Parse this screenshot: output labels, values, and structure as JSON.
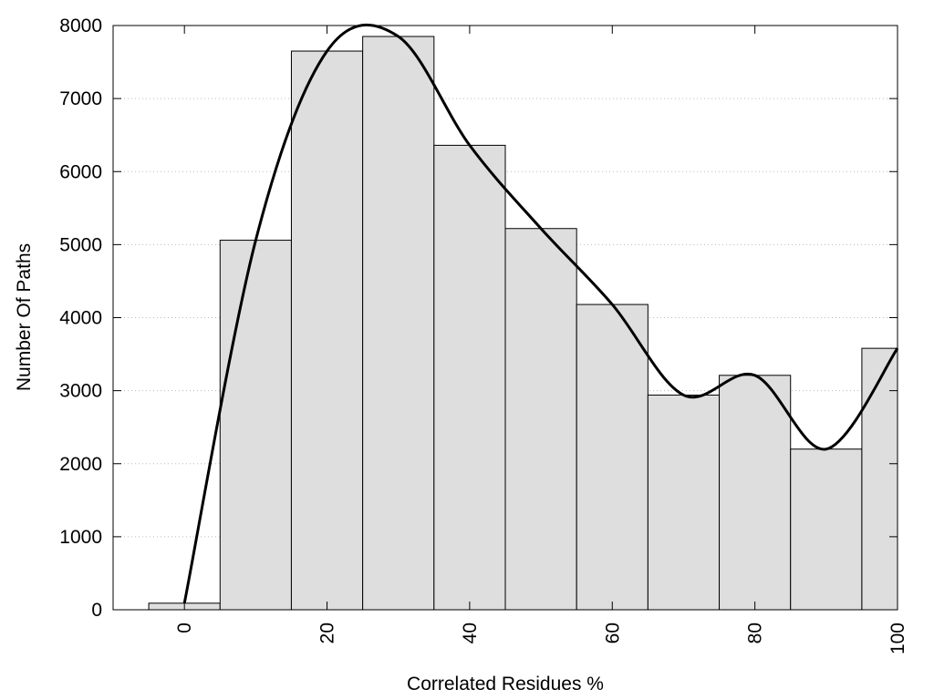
{
  "chart_data": {
    "type": "bar",
    "title": "",
    "xlabel": "Correlated Residues %",
    "ylabel": "Number Of Paths",
    "x": [
      0,
      10,
      20,
      30,
      40,
      50,
      60,
      70,
      80,
      90,
      100
    ],
    "values": [
      90,
      5060,
      7650,
      7850,
      6360,
      5220,
      4180,
      2940,
      3210,
      2200,
      3580
    ],
    "bin_width": 10,
    "xlim": [
      -10,
      100
    ],
    "ylim": [
      0,
      8000
    ],
    "xticks": [
      0,
      20,
      40,
      60,
      80,
      100
    ],
    "yticks": [
      0,
      1000,
      2000,
      3000,
      4000,
      5000,
      6000,
      7000,
      8000
    ],
    "grid": "horizontal dotted",
    "legend": "none",
    "curve": {
      "type": "smooth line",
      "x": [
        0,
        10,
        20,
        30,
        40,
        50,
        60,
        70,
        80,
        90,
        100
      ],
      "y": [
        90,
        5060,
        7650,
        7850,
        6360,
        5220,
        4180,
        2940,
        3210,
        2200,
        3580
      ]
    },
    "colors": {
      "bar_fill": "#dedede",
      "bar_stroke": "#000000",
      "curve": "#000000",
      "grid": "#bbbbbb"
    }
  }
}
